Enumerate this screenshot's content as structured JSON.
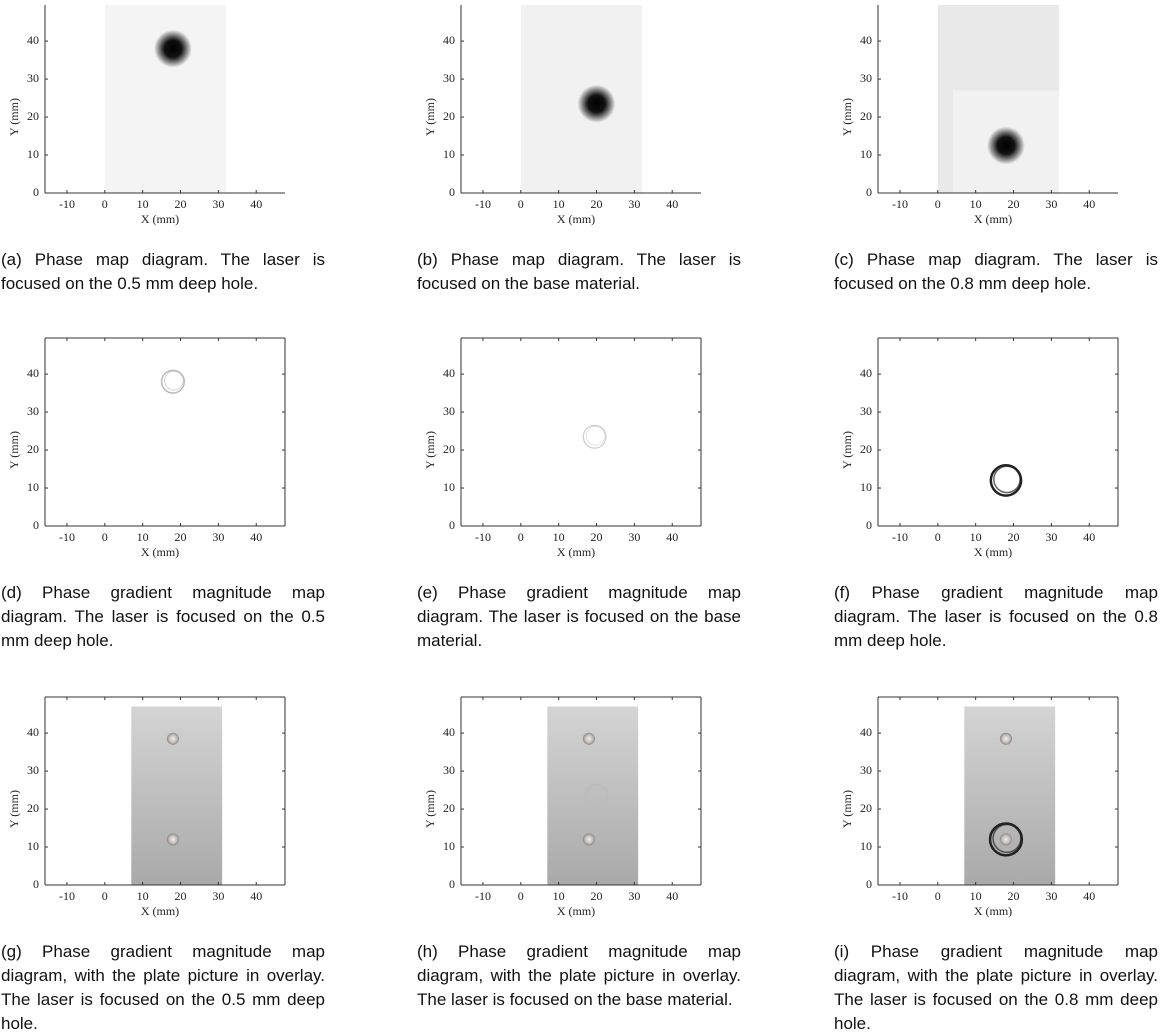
{
  "chart_data": [
    {
      "type": "image",
      "xlabel": "X (mm)",
      "ylabel": "Y (mm)",
      "xlim": [
        -15.8,
        47.6
      ],
      "ylim": [
        0,
        49.5
      ],
      "xticks": [
        -10,
        0,
        10,
        20,
        30,
        40
      ],
      "yticks": [
        0,
        10,
        20,
        30,
        40
      ],
      "box": false,
      "caption": "(a) Phase map diagram. The laser is focused on the 0.5 mm deep hole."
    },
    {
      "type": "image",
      "xlabel": "X (mm)",
      "ylabel": "Y (mm)",
      "xlim": [
        -15.8,
        47.6
      ],
      "ylim": [
        0,
        49.5
      ],
      "xticks": [
        -10,
        0,
        10,
        20,
        30,
        40
      ],
      "yticks": [
        0,
        10,
        20,
        30,
        40
      ],
      "box": false,
      "caption": "(b) Phase map diagram. The laser is focused on the base material."
    },
    {
      "type": "image",
      "xlabel": "X (mm)",
      "ylabel": "Y (mm)",
      "xlim": [
        -15.8,
        47.6
      ],
      "ylim": [
        0,
        49.5
      ],
      "xticks": [
        -10,
        0,
        10,
        20,
        30,
        40
      ],
      "yticks": [
        0,
        10,
        20,
        30,
        40
      ],
      "box": false,
      "caption": "(c) Phase map diagram. The laser is focused on the 0.8 mm deep hole."
    },
    {
      "type": "image",
      "xlabel": "X (mm)",
      "ylabel": "Y (mm)",
      "xlim": [
        -15.8,
        47.6
      ],
      "ylim": [
        0,
        49.5
      ],
      "xticks": [
        -10,
        0,
        10,
        20,
        30,
        40
      ],
      "yticks": [
        0,
        10,
        20,
        30,
        40
      ],
      "box": true,
      "caption": "(d) Phase gradient magnitude map diagram. The laser is focused on the 0.5 mm deep hole."
    },
    {
      "type": "image",
      "xlabel": "X (mm)",
      "ylabel": "Y (mm)",
      "xlim": [
        -15.8,
        47.6
      ],
      "ylim": [
        0,
        49.5
      ],
      "xticks": [
        -10,
        0,
        10,
        20,
        30,
        40
      ],
      "yticks": [
        0,
        10,
        20,
        30,
        40
      ],
      "box": true,
      "caption": "(e) Phase gradient magnitude map diagram. The laser is focused on the base material."
    },
    {
      "type": "image",
      "xlabel": "X (mm)",
      "ylabel": "Y (mm)",
      "xlim": [
        -15.8,
        47.6
      ],
      "ylim": [
        0,
        49.5
      ],
      "xticks": [
        -10,
        0,
        10,
        20,
        30,
        40
      ],
      "yticks": [
        0,
        10,
        20,
        30,
        40
      ],
      "box": true,
      "caption": "(f) Phase gradient magnitude map diagram. The laser is focused on the 0.8 mm deep hole."
    },
    {
      "type": "image",
      "xlabel": "X (mm)",
      "ylabel": "Y (mm)",
      "xlim": [
        -15.8,
        47.6
      ],
      "ylim": [
        0,
        49.5
      ],
      "xticks": [
        -10,
        0,
        10,
        20,
        30,
        40
      ],
      "yticks": [
        0,
        10,
        20,
        30,
        40
      ],
      "box": true,
      "caption": "(g) Phase gradient magnitude map diagram, with the plate picture in overlay. The laser is focused on the 0.5 mm deep hole."
    },
    {
      "type": "image",
      "xlabel": "X (mm)",
      "ylabel": "Y (mm)",
      "xlim": [
        -15.8,
        47.6
      ],
      "ylim": [
        0,
        49.5
      ],
      "xticks": [
        -10,
        0,
        10,
        20,
        30,
        40
      ],
      "yticks": [
        0,
        10,
        20,
        30,
        40
      ],
      "box": true,
      "caption": "(h) Phase gradient magnitude map diagram, with the plate picture in overlay. The laser is focused on the base material."
    },
    {
      "type": "image",
      "xlabel": "X (mm)",
      "ylabel": "Y (mm)",
      "xlim": [
        -15.8,
        47.6
      ],
      "ylim": [
        0,
        49.5
      ],
      "xticks": [
        -10,
        0,
        10,
        20,
        30,
        40
      ],
      "yticks": [
        0,
        10,
        20,
        30,
        40
      ],
      "box": true,
      "caption": "(i) Phase gradient magnitude map diagram, with the plate picture in overlay. The laser is focused on the 0.8 mm deep hole."
    }
  ]
}
